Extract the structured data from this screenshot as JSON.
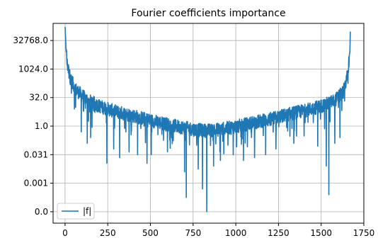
{
  "chart_data": {
    "type": "line",
    "title": "Fourier coefficients importance",
    "xlabel": "",
    "ylabel": "",
    "yscale": "log2",
    "xlim": [
      -70,
      1750
    ],
    "ylim_log2": [
      -17,
      18
    ],
    "x_ticks": [
      0,
      250,
      500,
      750,
      1000,
      1250,
      1500,
      1750
    ],
    "y_ticks": [
      {
        "label": "0.0",
        "log2": -15
      },
      {
        "label": "0.001",
        "log2": -10
      },
      {
        "label": "0.031",
        "log2": -5
      },
      {
        "label": "1.0",
        "log2": 0
      },
      {
        "label": "32.0",
        "log2": 5
      },
      {
        "label": "1024.0",
        "log2": 10
      },
      {
        "label": "32768.0",
        "log2": 15
      }
    ],
    "grid": true,
    "legend": {
      "placement": "lower-left",
      "entries": [
        "|f|"
      ]
    },
    "series": [
      {
        "name": "|f|",
        "color": "#1f77b4",
        "n_points": 1672,
        "envelope_log2": [
          [
            0,
            17.5
          ],
          [
            5,
            14.0
          ],
          [
            12,
            11.0
          ],
          [
            30,
            8.5
          ],
          [
            60,
            6.5
          ],
          [
            120,
            4.8
          ],
          [
            200,
            3.5
          ],
          [
            300,
            2.5
          ],
          [
            400,
            1.8
          ],
          [
            500,
            1.0
          ],
          [
            600,
            0.3
          ],
          [
            700,
            -0.3
          ],
          [
            780,
            -0.7
          ],
          [
            830,
            -0.8
          ],
          [
            900,
            -0.6
          ],
          [
            1000,
            -0.1
          ],
          [
            1100,
            0.6
          ],
          [
            1200,
            1.2
          ],
          [
            1300,
            2.0
          ],
          [
            1400,
            2.7
          ],
          [
            1500,
            3.5
          ],
          [
            1580,
            4.5
          ],
          [
            1630,
            6.0
          ],
          [
            1655,
            9.0
          ],
          [
            1668,
            13.0
          ],
          [
            1671,
            16.5
          ]
        ],
        "notable_dips_log2": [
          [
            55,
            3.0
          ],
          [
            95,
            -1.0
          ],
          [
            130,
            -3.0
          ],
          [
            150,
            -2.0
          ],
          [
            245,
            -6.5
          ],
          [
            285,
            -4.0
          ],
          [
            320,
            -5.5
          ],
          [
            375,
            -4.5
          ],
          [
            425,
            -5.0
          ],
          [
            480,
            -6.5
          ],
          [
            505,
            -5.0
          ],
          [
            600,
            -4.5
          ],
          [
            700,
            -8.0
          ],
          [
            710,
            -12.5
          ],
          [
            780,
            -7.5
          ],
          [
            805,
            -11.0
          ],
          [
            830,
            -15.0
          ],
          [
            870,
            -7.0
          ],
          [
            910,
            -6.0
          ],
          [
            985,
            -5.0
          ],
          [
            1045,
            -6.0
          ],
          [
            1110,
            -5.5
          ],
          [
            1175,
            -5.0
          ],
          [
            1235,
            -4.0
          ],
          [
            1340,
            -3.0
          ],
          [
            1480,
            -3.5
          ],
          [
            1530,
            -7.0
          ],
          [
            1545,
            -12.0
          ],
          [
            1580,
            -3.0
          ],
          [
            1610,
            -2.0
          ]
        ]
      }
    ]
  }
}
